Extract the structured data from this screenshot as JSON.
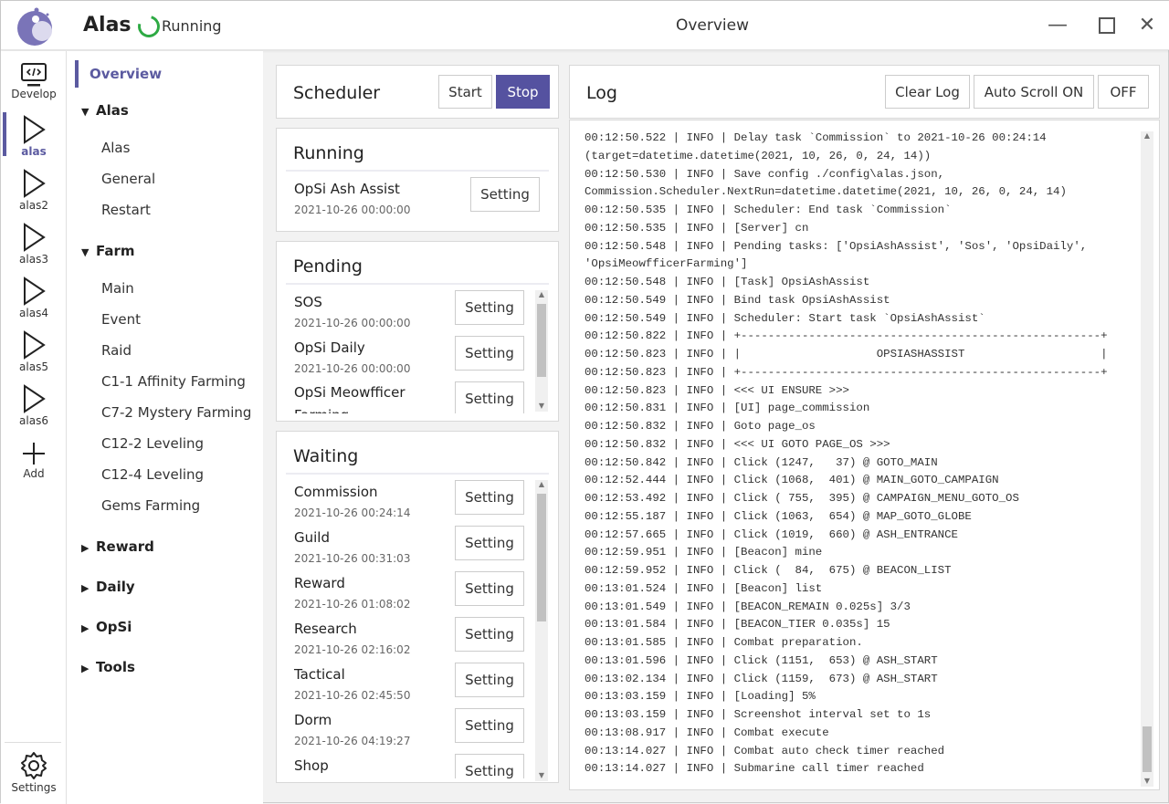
{
  "header": {
    "app_title": "Alas",
    "status": "Running",
    "page_title": "Overview",
    "status_color": "#2eaa44",
    "accent": "#5b5aa0"
  },
  "iconbar": {
    "items": [
      {
        "label": "Develop",
        "icon": "code-monitor-icon"
      },
      {
        "label": "alas",
        "icon": "play-icon",
        "selected": true
      },
      {
        "label": "alas2",
        "icon": "play-icon"
      },
      {
        "label": "alas3",
        "icon": "play-icon"
      },
      {
        "label": "alas4",
        "icon": "play-icon"
      },
      {
        "label": "alas5",
        "icon": "play-icon"
      },
      {
        "label": "alas6",
        "icon": "play-icon"
      },
      {
        "label": "Add",
        "icon": "plus-icon"
      }
    ],
    "settings": "Settings"
  },
  "nav": {
    "overview": "Overview",
    "groups": [
      {
        "label": "Alas",
        "expanded": true,
        "items": [
          "Alas",
          "General",
          "Restart"
        ]
      },
      {
        "label": "Farm",
        "expanded": true,
        "items": [
          "Main",
          "Event",
          "Raid",
          "C1-1 Affinity Farming",
          "C7-2 Mystery Farming",
          "C12-2 Leveling",
          "C12-4 Leveling",
          "Gems Farming"
        ]
      },
      {
        "label": "Reward"
      },
      {
        "label": "Daily"
      },
      {
        "label": "OpSi"
      },
      {
        "label": "Tools"
      }
    ]
  },
  "scheduler": {
    "title": "Scheduler",
    "start": "Start",
    "stop": "Stop"
  },
  "setting_label": "Setting",
  "running": {
    "title": "Running",
    "tasks": [
      {
        "name": "OpSi Ash Assist",
        "time": "2021-10-26 00:00:00"
      }
    ]
  },
  "pending": {
    "title": "Pending",
    "tasks": [
      {
        "name": "SOS",
        "time": "2021-10-26 00:00:00"
      },
      {
        "name": "OpSi Daily",
        "time": "2021-10-26 00:00:00"
      },
      {
        "name": "OpSi Meowfficer Farming",
        "time": ""
      }
    ]
  },
  "waiting": {
    "title": "Waiting",
    "tasks": [
      {
        "name": "Commission",
        "time": "2021-10-26 00:24:14"
      },
      {
        "name": "Guild",
        "time": "2021-10-26 00:31:03"
      },
      {
        "name": "Reward",
        "time": "2021-10-26 01:08:02"
      },
      {
        "name": "Research",
        "time": "2021-10-26 02:16:02"
      },
      {
        "name": "Tactical",
        "time": "2021-10-26 02:45:50"
      },
      {
        "name": "Dorm",
        "time": "2021-10-26 04:19:27"
      },
      {
        "name": "Shop",
        "time": ""
      }
    ]
  },
  "log": {
    "title": "Log",
    "clear": "Clear Log",
    "auto_scroll": "Auto Scroll ON",
    "off": "OFF",
    "lines": [
      "00:12:50.522 | INFO | Delay task `Commission` to 2021-10-26 00:24:14",
      "(target=datetime.datetime(2021, 10, 26, 0, 24, 14))",
      "00:12:50.530 | INFO | Save config ./config\\alas.json,",
      "Commission.Scheduler.NextRun=datetime.datetime(2021, 10, 26, 0, 24, 14)",
      "00:12:50.535 | INFO | Scheduler: End task `Commission`",
      "00:12:50.535 | INFO | [Server] cn",
      "00:12:50.548 | INFO | Pending tasks: ['OpsiAshAssist', 'Sos', 'OpsiDaily',",
      "'OpsiMeowfficerFarming']",
      "00:12:50.548 | INFO | [Task] OpsiAshAssist",
      "00:12:50.549 | INFO | Bind task OpsiAshAssist",
      "00:12:50.549 | INFO | Scheduler: Start task `OpsiAshAssist`",
      "00:12:50.822 | INFO | +-----------------------------------------------------+",
      "00:12:50.823 | INFO | |                    OPSIASHASSIST                    |",
      "00:12:50.823 | INFO | +-----------------------------------------------------+",
      "00:12:50.823 | INFO | <<< UI ENSURE >>>",
      "00:12:50.831 | INFO | [UI] page_commission",
      "00:12:50.832 | INFO | Goto page_os",
      "00:12:50.832 | INFO | <<< UI GOTO PAGE_OS >>>",
      "00:12:50.842 | INFO | Click (1247,   37) @ GOTO_MAIN",
      "00:12:52.444 | INFO | Click (1068,  401) @ MAIN_GOTO_CAMPAIGN",
      "00:12:53.492 | INFO | Click ( 755,  395) @ CAMPAIGN_MENU_GOTO_OS",
      "00:12:55.187 | INFO | Click (1063,  654) @ MAP_GOTO_GLOBE",
      "00:12:57.665 | INFO | Click (1019,  660) @ ASH_ENTRANCE",
      "00:12:59.951 | INFO | [Beacon] mine",
      "00:12:59.952 | INFO | Click (  84,  675) @ BEACON_LIST",
      "00:13:01.524 | INFO | [Beacon] list",
      "00:13:01.549 | INFO | [BEACON_REMAIN 0.025s] 3/3",
      "00:13:01.584 | INFO | [BEACON_TIER 0.035s] 15",
      "00:13:01.585 | INFO | Combat preparation.",
      "00:13:01.596 | INFO | Click (1151,  653) @ ASH_START",
      "00:13:02.134 | INFO | Click (1159,  673) @ ASH_START",
      "00:13:03.159 | INFO | [Loading] 5%",
      "00:13:03.159 | INFO | Screenshot interval set to 1s",
      "00:13:08.917 | INFO | Combat execute",
      "00:13:14.027 | INFO | Combat auto check timer reached",
      "00:13:14.027 | INFO | Submarine call timer reached"
    ]
  }
}
